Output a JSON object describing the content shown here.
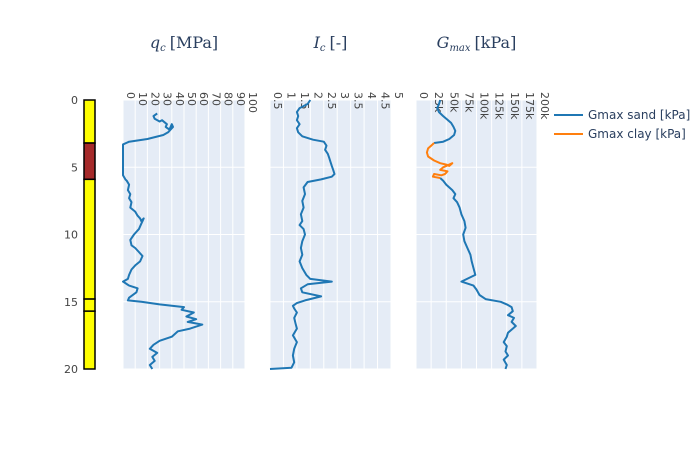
{
  "chart_data": [
    {
      "type": "bar",
      "title": "",
      "xlabel": "",
      "ylabel": "",
      "ylim": [
        20,
        0
      ],
      "y_ticks": [
        "0",
        "5",
        "10",
        "15",
        "20"
      ],
      "layers": [
        {
          "top": 0.0,
          "bottom": 3.2,
          "color": "#ffff00"
        },
        {
          "top": 3.2,
          "bottom": 5.9,
          "color": "#a52a2a"
        },
        {
          "top": 5.9,
          "bottom": 14.8,
          "color": "#ffff00"
        },
        {
          "top": 14.8,
          "bottom": 15.7,
          "color": "#ffff00"
        },
        {
          "top": 15.7,
          "bottom": 20.0,
          "color": "#ffff00"
        }
      ]
    },
    {
      "type": "line",
      "title": "q_c [MPa]",
      "title_main": "q",
      "title_sub": "c",
      "title_unit": "[MPa]",
      "xlim": [
        0,
        100
      ],
      "ylim": [
        20,
        0
      ],
      "x_ticks": [
        "0",
        "10",
        "20",
        "30",
        "40",
        "50",
        "60",
        "70",
        "80",
        "90",
        "100"
      ],
      "grid": true,
      "series": [
        {
          "color": "#1f77b4",
          "showlegend": false,
          "points": [
            [
              28,
              1.0
            ],
            [
              25,
              1.2
            ],
            [
              26,
              1.4
            ],
            [
              30,
              1.6
            ],
            [
              32,
              1.5
            ],
            [
              36,
              1.8
            ],
            [
              35,
              2.0
            ],
            [
              38,
              2.2
            ],
            [
              40,
              1.8
            ],
            [
              41,
              2.0
            ],
            [
              37,
              2.4
            ],
            [
              33,
              2.6
            ],
            [
              20,
              2.9
            ],
            [
              5,
              3.1
            ],
            [
              0,
              3.3
            ],
            [
              0,
              4.0
            ],
            [
              0,
              5.0
            ],
            [
              0,
              5.6
            ],
            [
              2,
              5.9
            ],
            [
              3,
              6.0
            ],
            [
              5,
              6.3
            ],
            [
              4,
              6.7
            ],
            [
              6,
              7.0
            ],
            [
              5,
              7.3
            ],
            [
              7,
              7.6
            ],
            [
              6,
              8.0
            ],
            [
              10,
              8.3
            ],
            [
              12,
              8.6
            ],
            [
              14,
              8.8
            ],
            [
              15,
              9.0
            ],
            [
              17,
              8.8
            ],
            [
              15,
              9.2
            ],
            [
              13,
              9.6
            ],
            [
              9,
              10.0
            ],
            [
              6,
              10.4
            ],
            [
              7,
              10.8
            ],
            [
              10,
              11.0
            ],
            [
              13,
              11.3
            ],
            [
              16,
              11.6
            ],
            [
              14,
              12.0
            ],
            [
              10,
              12.3
            ],
            [
              7,
              12.6
            ],
            [
              5,
              13.0
            ],
            [
              4,
              13.3
            ],
            [
              0,
              13.5
            ],
            [
              5,
              13.8
            ],
            [
              12,
              14.0
            ],
            [
              11,
              14.3
            ],
            [
              5,
              14.7
            ],
            [
              4,
              14.9
            ],
            [
              15,
              15.0
            ],
            [
              30,
              15.2
            ],
            [
              50,
              15.4
            ],
            [
              48,
              15.6
            ],
            [
              58,
              15.8
            ],
            [
              52,
              16.1
            ],
            [
              60,
              16.3
            ],
            [
              53,
              16.5
            ],
            [
              65,
              16.7
            ],
            [
              55,
              17.0
            ],
            [
              45,
              17.2
            ],
            [
              40,
              17.6
            ],
            [
              30,
              17.9
            ],
            [
              25,
              18.2
            ],
            [
              22,
              18.5
            ],
            [
              28,
              18.8
            ],
            [
              24,
              19.1
            ],
            [
              26,
              19.4
            ],
            [
              22,
              19.7
            ],
            [
              24,
              20.0
            ]
          ]
        }
      ]
    },
    {
      "type": "line",
      "title": "I_c [-]",
      "title_main": "I",
      "title_sub": "c",
      "title_unit": "[-]",
      "xlim": [
        0.5,
        5
      ],
      "ylim": [
        20,
        0
      ],
      "x_ticks": [
        "0.5",
        "1",
        "1.5",
        "2",
        "2.5",
        "3",
        "3.5",
        "4",
        "4.5",
        "5"
      ],
      "x_tick_values": [
        0.5,
        1,
        1.5,
        2,
        2.5,
        3,
        3.5,
        4,
        4.5,
        5
      ],
      "grid": true,
      "series": [
        {
          "color": "#1f77b4",
          "showlegend": false,
          "points": [
            [
              2.0,
              0.0
            ],
            [
              1.9,
              0.3
            ],
            [
              1.6,
              0.6
            ],
            [
              1.5,
              0.9
            ],
            [
              1.55,
              1.2
            ],
            [
              1.5,
              1.5
            ],
            [
              1.6,
              1.8
            ],
            [
              1.5,
              2.1
            ],
            [
              1.55,
              2.4
            ],
            [
              1.7,
              2.7
            ],
            [
              2.1,
              2.95
            ],
            [
              2.5,
              3.1
            ],
            [
              2.6,
              3.4
            ],
            [
              2.55,
              3.7
            ],
            [
              2.65,
              4.0
            ],
            [
              2.7,
              4.3
            ],
            [
              2.75,
              4.6
            ],
            [
              2.8,
              4.9
            ],
            [
              2.85,
              5.2
            ],
            [
              2.9,
              5.5
            ],
            [
              2.8,
              5.7
            ],
            [
              2.4,
              5.9
            ],
            [
              1.9,
              6.1
            ],
            [
              1.75,
              6.5
            ],
            [
              1.8,
              7.0
            ],
            [
              1.7,
              7.5
            ],
            [
              1.75,
              8.0
            ],
            [
              1.65,
              8.5
            ],
            [
              1.7,
              9.0
            ],
            [
              1.6,
              9.3
            ],
            [
              1.75,
              9.6
            ],
            [
              1.8,
              10.0
            ],
            [
              1.7,
              10.5
            ],
            [
              1.65,
              11.0
            ],
            [
              1.7,
              11.5
            ],
            [
              1.6,
              12.0
            ],
            [
              1.7,
              12.5
            ],
            [
              1.85,
              13.0
            ],
            [
              2.0,
              13.3
            ],
            [
              2.8,
              13.5
            ],
            [
              1.9,
              13.7
            ],
            [
              1.65,
              14.0
            ],
            [
              1.7,
              14.3
            ],
            [
              2.4,
              14.6
            ],
            [
              1.8,
              14.9
            ],
            [
              1.5,
              15.1
            ],
            [
              1.35,
              15.3
            ],
            [
              1.4,
              15.5
            ],
            [
              1.5,
              15.8
            ],
            [
              1.4,
              16.2
            ],
            [
              1.45,
              16.6
            ],
            [
              1.5,
              17.0
            ],
            [
              1.35,
              17.5
            ],
            [
              1.5,
              18.0
            ],
            [
              1.4,
              18.5
            ],
            [
              1.35,
              19.0
            ],
            [
              1.4,
              19.5
            ],
            [
              1.3,
              19.9
            ],
            [
              0.5,
              20.0
            ]
          ]
        }
      ]
    },
    {
      "type": "line",
      "title": "G_max [kPa]",
      "title_main": "G",
      "title_sub": "max",
      "title_unit": "[kPa]",
      "xlim": [
        0,
        200000
      ],
      "ylim": [
        20,
        0
      ],
      "x_ticks": [
        "0",
        "25k",
        "50k",
        "75k",
        "100k",
        "125k",
        "150k",
        "175k",
        "200k"
      ],
      "x_tick_values": [
        0,
        25000,
        50000,
        75000,
        100000,
        125000,
        150000,
        175000,
        200000
      ],
      "grid": true,
      "series": [
        {
          "name": "Gmax sand [kPa]",
          "color": "#1f77b4",
          "showlegend": true,
          "segments": [
            [
              [
                40000,
                0.0
              ],
              [
                38000,
                0.3
              ],
              [
                35000,
                0.6
              ],
              [
                38000,
                0.9
              ],
              [
                45000,
                1.2
              ],
              [
                50000,
                1.4
              ],
              [
                58000,
                1.7
              ],
              [
                62000,
                2.0
              ],
              [
                65000,
                2.3
              ],
              [
                63000,
                2.6
              ],
              [
                55000,
                2.9
              ],
              [
                45000,
                3.1
              ],
              [
                30000,
                3.2
              ]
            ],
            [
              [
                40000,
                5.8
              ],
              [
                45000,
                6.0
              ],
              [
                50000,
                6.3
              ],
              [
                60000,
                6.7
              ],
              [
                65000,
                7.0
              ],
              [
                62000,
                7.3
              ],
              [
                68000,
                7.6
              ],
              [
                72000,
                8.0
              ],
              [
                75000,
                8.5
              ],
              [
                80000,
                9.0
              ],
              [
                82000,
                9.5
              ],
              [
                78000,
                10.0
              ],
              [
                80000,
                10.5
              ],
              [
                85000,
                11.0
              ],
              [
                90000,
                11.5
              ],
              [
                92000,
                12.0
              ],
              [
                95000,
                12.5
              ],
              [
                98000,
                13.0
              ],
              [
                75000,
                13.5
              ],
              [
                95000,
                13.8
              ],
              [
                100000,
                14.1
              ],
              [
                105000,
                14.5
              ],
              [
                115000,
                14.8
              ],
              [
                140000,
                15.0
              ],
              [
                150000,
                15.2
              ],
              [
                158000,
                15.4
              ],
              [
                160000,
                15.7
              ],
              [
                152000,
                16.0
              ],
              [
                162000,
                16.2
              ],
              [
                158000,
                16.5
              ],
              [
                165000,
                16.8
              ],
              [
                160000,
                17.0
              ],
              [
                152000,
                17.3
              ],
              [
                150000,
                17.6
              ],
              [
                145000,
                18.0
              ],
              [
                150000,
                18.3
              ],
              [
                148000,
                18.7
              ],
              [
                152000,
                19.0
              ],
              [
                145000,
                19.3
              ],
              [
                150000,
                19.7
              ],
              [
                148000,
                20.0
              ]
            ]
          ]
        },
        {
          "name": "Gmax clay [kPa]",
          "color": "#ff7f0e",
          "showlegend": true,
          "segments": [
            [
              [
                30000,
                3.2
              ],
              [
                25000,
                3.4
              ],
              [
                20000,
                3.6
              ],
              [
                18000,
                3.9
              ],
              [
                20000,
                4.2
              ],
              [
                30000,
                4.5
              ],
              [
                40000,
                4.7
              ],
              [
                50000,
                4.8
              ],
              [
                55000,
                4.9
              ],
              [
                60000,
                4.7
              ],
              [
                45000,
                5.0
              ],
              [
                40000,
                5.2
              ],
              [
                52000,
                5.3
              ],
              [
                48000,
                5.5
              ],
              [
                42000,
                5.6
              ],
              [
                30000,
                5.5
              ],
              [
                28000,
                5.7
              ],
              [
                40000,
                5.8
              ]
            ]
          ]
        }
      ]
    }
  ]
}
